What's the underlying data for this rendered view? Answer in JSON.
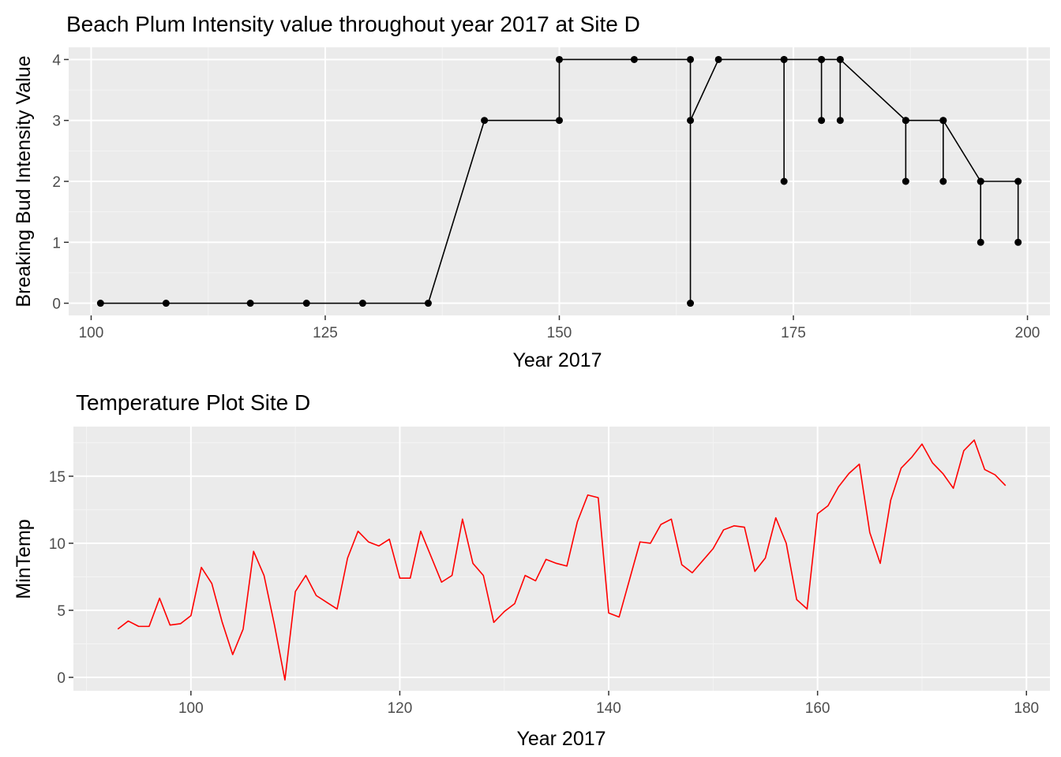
{
  "chart_data": [
    {
      "type": "line",
      "title": "Beach Plum Intensity value throughout year 2017 at Site D",
      "xlabel": "Year 2017",
      "ylabel": "Breaking Bud Intensity Value",
      "xlim": [
        97.6,
        202.4
      ],
      "ylim": [
        -0.2,
        4.2
      ],
      "x_ticks": [
        100,
        125,
        150,
        175,
        200
      ],
      "y_ticks": [
        0,
        1,
        2,
        3,
        4
      ],
      "grid": true,
      "markers": true,
      "line_color": "#000000",
      "series": [
        {
          "x": [
            101,
            108,
            117,
            123,
            129,
            136,
            142,
            150,
            150,
            158,
            164,
            164,
            164,
            167,
            174,
            174,
            174,
            178,
            178,
            178,
            180,
            180,
            180,
            187,
            187,
            187,
            191,
            191,
            191,
            195,
            195,
            195,
            199,
            199
          ],
          "y": [
            0,
            0,
            0,
            0,
            0,
            0,
            3,
            3,
            4,
            4,
            4,
            0,
            3,
            4,
            4,
            2,
            4,
            4,
            3,
            4,
            4,
            3,
            4,
            3,
            2,
            3,
            3,
            2,
            3,
            2,
            1,
            2,
            2,
            1
          ]
        }
      ]
    },
    {
      "type": "line",
      "title": "Temperature Plot Site D",
      "xlabel": "Year 2017",
      "ylabel": "MinTemp",
      "xlim": [
        88.75,
        182.25
      ],
      "ylim": [
        -1.0,
        18.7
      ],
      "x_ticks": [
        100,
        120,
        140,
        160,
        180
      ],
      "y_ticks": [
        0,
        5,
        10,
        15
      ],
      "grid": true,
      "line_color": "#ff0000",
      "series": [
        {
          "x": [
            93,
            94,
            95,
            96,
            97,
            98,
            99,
            100,
            101,
            102,
            103,
            104,
            105,
            106,
            107,
            108,
            109,
            110,
            111,
            112,
            113,
            114,
            115,
            116,
            117,
            118,
            119,
            120,
            121,
            122,
            123,
            124,
            125,
            126,
            127,
            128,
            129,
            130,
            131,
            132,
            133,
            134,
            135,
            136,
            137,
            138,
            139,
            140,
            141,
            142,
            143,
            144,
            145,
            146,
            147,
            148,
            149,
            150,
            151,
            152,
            153,
            154,
            155,
            156,
            157,
            158,
            159,
            160,
            161,
            162,
            163,
            164,
            165,
            166,
            167,
            168,
            169,
            170,
            171,
            172,
            173,
            174,
            175,
            176,
            177,
            178
          ],
          "y": [
            3.6,
            4.2,
            3.8,
            3.8,
            5.9,
            3.9,
            4.0,
            4.6,
            8.2,
            7.0,
            4.1,
            1.7,
            3.6,
            9.4,
            7.6,
            3.9,
            -0.2,
            6.4,
            7.6,
            6.1,
            5.6,
            5.1,
            8.9,
            10.9,
            10.1,
            9.8,
            10.3,
            7.4,
            7.4,
            10.9,
            9.0,
            7.1,
            7.6,
            11.8,
            8.5,
            7.6,
            4.1,
            4.9,
            5.5,
            7.6,
            7.2,
            8.8,
            8.5,
            8.3,
            11.6,
            13.6,
            13.4,
            4.8,
            4.5,
            7.3,
            10.1,
            10.0,
            11.4,
            11.8,
            8.4,
            7.8,
            8.7,
            9.6,
            11.0,
            11.3,
            11.2,
            7.9,
            8.9,
            11.9,
            10.0,
            5.8,
            5.1,
            12.2,
            12.8,
            14.2,
            15.2,
            15.9,
            10.8,
            8.5,
            13.2,
            15.6,
            16.4,
            17.4,
            16.0,
            15.2,
            14.1,
            16.9,
            17.7,
            15.5,
            15.1,
            14.3
          ]
        }
      ]
    }
  ]
}
